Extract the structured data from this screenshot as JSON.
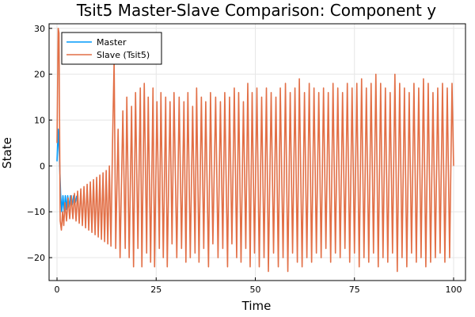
{
  "chart_data": {
    "type": "line",
    "title": "Tsit5 Master-Slave Comparison: Component y",
    "xlabel": "Time",
    "ylabel": "State",
    "xlim": [
      -2,
      103
    ],
    "ylim": [
      -25,
      31
    ],
    "xticks": [
      0,
      25,
      50,
      75,
      100
    ],
    "yticks": [
      -20,
      -10,
      0,
      10,
      20,
      30
    ],
    "grid": true,
    "legend_position": "top-left",
    "series": [
      {
        "name": "Master",
        "color": "#009AFA",
        "x": [
          0,
          0.3,
          0.6,
          0.9,
          1.2,
          1.5,
          1.8,
          2.1,
          2.4,
          2.7,
          3.0,
          3.4,
          3.8,
          4.2,
          4.6,
          5.0
        ],
        "y": [
          1.0,
          8.0,
          2.0,
          -6.0,
          -10.0,
          -6.5,
          -10.0,
          -6.5,
          -9.5,
          -6.5,
          -9.0,
          -6.5,
          -8.5,
          -6.5,
          -8.0,
          -6.5
        ]
      },
      {
        "name": "Slave (Tsit5)",
        "color": "#E26F46",
        "x": [
          0,
          0.3,
          0.5,
          0.8,
          1.1,
          1.4,
          1.7,
          2.0,
          2.4,
          2.8,
          3.2,
          3.6,
          4.0,
          4.4,
          4.8,
          5.2,
          5.6,
          6.0,
          6.4,
          6.8,
          7.2,
          7.6,
          8.0,
          8.4,
          8.8,
          9.2,
          9.6,
          10.0,
          10.4,
          10.8,
          11.2,
          11.6,
          12.0,
          12.4,
          12.8,
          13.2,
          13.6,
          14.0,
          14.4,
          14.8,
          15.4,
          15.9,
          16.6,
          17.2,
          17.6,
          18.2,
          18.8,
          19.3,
          19.8,
          20.4,
          21.0,
          21.4,
          22.0,
          22.6,
          23.0,
          23.6,
          24.2,
          24.6,
          25.2,
          25.8,
          26.2,
          26.8,
          27.4,
          27.8,
          28.5,
          29.0,
          29.5,
          30.2,
          30.8,
          31.4,
          32.0,
          32.5,
          33.0,
          33.6,
          34.2,
          34.8,
          35.2,
          35.8,
          36.4,
          37.0,
          37.5,
          38.2,
          38.7,
          39.3,
          40.0,
          40.6,
          41.2,
          41.8,
          42.3,
          43.0,
          43.5,
          44.1,
          44.7,
          45.3,
          45.8,
          46.4,
          47.0,
          47.6,
          48.1,
          48.7,
          49.2,
          49.8,
          50.4,
          51.0,
          51.6,
          52.2,
          52.8,
          53.3,
          54.0,
          54.6,
          55.2,
          55.8,
          56.3,
          57.0,
          57.6,
          58.2,
          58.8,
          59.4,
          60.0,
          60.6,
          61.1,
          61.8,
          62.4,
          63.0,
          63.6,
          64.2,
          64.8,
          65.4,
          66.0,
          66.6,
          67.2,
          67.8,
          68.4,
          69.0,
          69.6,
          70.2,
          70.8,
          71.4,
          72.0,
          72.6,
          73.2,
          73.8,
          74.4,
          75.0,
          75.6,
          76.2,
          76.8,
          77.4,
          78.0,
          78.6,
          79.2,
          79.8,
          80.4,
          81.0,
          81.6,
          82.2,
          82.8,
          83.4,
          84.0,
          84.6,
          85.2,
          85.8,
          86.4,
          87.0,
          87.6,
          88.2,
          88.8,
          89.4,
          90.0,
          90.6,
          91.2,
          91.8,
          92.4,
          93.0,
          93.6,
          94.2,
          94.8,
          95.4,
          96.0,
          96.6,
          97.2,
          97.8,
          98.4,
          99.0,
          99.6,
          100.0
        ],
        "y": [
          5.0,
          30.0,
          29.0,
          -12.0,
          -14.0,
          -10.0,
          -13.0,
          -8.0,
          -12.0,
          -7.0,
          -11.5,
          -6.5,
          -11.5,
          -6.0,
          -12.0,
          -5.5,
          -12.5,
          -5.0,
          -13.0,
          -4.5,
          -13.5,
          -4.0,
          -14.0,
          -3.5,
          -14.5,
          -3.0,
          -15.0,
          -2.5,
          -15.5,
          -2.0,
          -16.0,
          -1.5,
          -16.5,
          -1.0,
          -17.0,
          0.0,
          -17.5,
          5.0,
          23.0,
          -18.0,
          8.0,
          -20.0,
          12.0,
          -18.0,
          15.0,
          -20.0,
          13.0,
          -22.0,
          16.0,
          -18.0,
          17.0,
          -22.0,
          18.0,
          -19.0,
          15.0,
          -21.0,
          17.0,
          -22.0,
          14.0,
          -18.0,
          16.0,
          -20.0,
          15.0,
          -22.0,
          14.0,
          -17.0,
          16.0,
          -20.0,
          15.0,
          -18.0,
          14.0,
          -21.0,
          16.0,
          -20.0,
          13.0,
          -19.0,
          17.0,
          -21.0,
          15.0,
          -18.0,
          14.0,
          -22.0,
          16.0,
          -17.0,
          15.0,
          -20.0,
          14.0,
          -18.0,
          16.0,
          -22.0,
          15.0,
          -17.0,
          17.0,
          -20.0,
          16.0,
          -21.0,
          14.0,
          -18.0,
          18.0,
          -22.0,
          16.0,
          -19.0,
          17.0,
          -22.0,
          15.0,
          -20.0,
          17.0,
          -23.0,
          16.0,
          -19.0,
          15.0,
          -22.0,
          17.0,
          -20.0,
          18.0,
          -23.0,
          16.0,
          -19.0,
          17.0,
          -21.0,
          19.0,
          -22.0,
          16.0,
          -20.0,
          18.0,
          -21.0,
          17.0,
          -19.0,
          16.0,
          -20.0,
          17.0,
          -18.0,
          16.0,
          -21.0,
          18.0,
          -19.0,
          17.0,
          -20.0,
          16.0,
          -18.0,
          18.0,
          -21.0,
          17.0,
          -19.0,
          18.0,
          -22.0,
          19.0,
          -20.0,
          17.0,
          -21.0,
          18.0,
          -19.0,
          20.0,
          -22.0,
          18.0,
          -20.0,
          17.0,
          -21.0,
          16.0,
          -19.0,
          20.0,
          -23.0,
          18.0,
          -20.0,
          17.0,
          -22.0,
          16.0,
          -19.0,
          18.0,
          -21.0,
          17.0,
          -20.0,
          19.0,
          -22.0,
          18.0,
          -21.0,
          16.0,
          -20.0,
          17.0,
          -19.0,
          18.0,
          -21.0,
          17.0,
          -20.0,
          18.0,
          0.0
        ]
      }
    ]
  }
}
